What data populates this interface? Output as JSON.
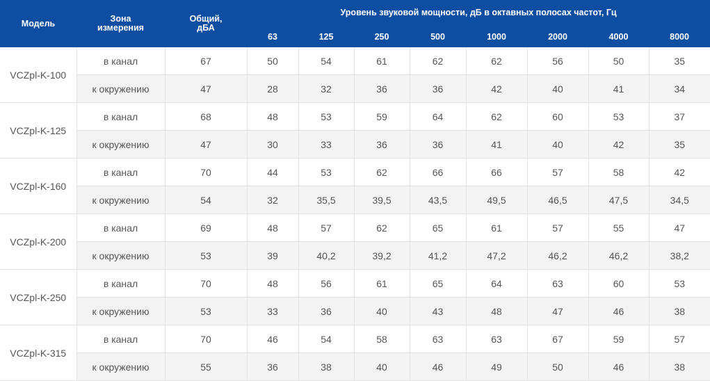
{
  "header": {
    "model": "Модель",
    "zone": "Зона\nизмерения",
    "total": "Общий,\nдБА",
    "group": "Уровень звуковой мощности, дБ в октавных полосах частот, Гц",
    "freqs": [
      "63",
      "125",
      "250",
      "500",
      "1000",
      "2000",
      "4000",
      "8000"
    ]
  },
  "models": [
    {
      "name": "VCZpl-K-100",
      "rows": [
        {
          "zone": "в канал",
          "total": "67",
          "v": [
            "50",
            "54",
            "61",
            "62",
            "62",
            "56",
            "50",
            "35"
          ]
        },
        {
          "zone": "к окружению",
          "total": "47",
          "v": [
            "28",
            "32",
            "36",
            "36",
            "42",
            "40",
            "41",
            "34"
          ]
        }
      ]
    },
    {
      "name": "VCZpl-K-125",
      "rows": [
        {
          "zone": "в канал",
          "total": "68",
          "v": [
            "48",
            "53",
            "59",
            "64",
            "62",
            "60",
            "53",
            "37"
          ]
        },
        {
          "zone": "к окружению",
          "total": "47",
          "v": [
            "30",
            "33",
            "36",
            "36",
            "41",
            "40",
            "42",
            "35"
          ]
        }
      ]
    },
    {
      "name": "VCZpl-K-160",
      "rows": [
        {
          "zone": "в канал",
          "total": "70",
          "v": [
            "44",
            "53",
            "62",
            "66",
            "66",
            "57",
            "58",
            "42"
          ]
        },
        {
          "zone": "к окружению",
          "total": "54",
          "v": [
            "32",
            "35,5",
            "39,5",
            "43,5",
            "49,5",
            "46,5",
            "47,5",
            "34,5"
          ]
        }
      ]
    },
    {
      "name": "VCZpl-K-200",
      "rows": [
        {
          "zone": "в канал",
          "total": "69",
          "v": [
            "48",
            "57",
            "62",
            "65",
            "61",
            "57",
            "55",
            "47"
          ]
        },
        {
          "zone": "к окружению",
          "total": "53",
          "v": [
            "39",
            "40,2",
            "39,2",
            "41,2",
            "47,2",
            "46,2",
            "46,2",
            "38,2"
          ]
        }
      ]
    },
    {
      "name": "VCZpl-K-250",
      "rows": [
        {
          "zone": "в канал",
          "total": "70",
          "v": [
            "48",
            "56",
            "61",
            "65",
            "64",
            "63",
            "60",
            "53"
          ]
        },
        {
          "zone": "к окружению",
          "total": "53",
          "v": [
            "33",
            "36",
            "40",
            "43",
            "48",
            "47",
            "46",
            "38"
          ]
        }
      ]
    },
    {
      "name": "VCZpl-K-315",
      "rows": [
        {
          "zone": "в канал",
          "total": "70",
          "v": [
            "46",
            "54",
            "58",
            "63",
            "63",
            "67",
            "59",
            "57"
          ]
        },
        {
          "zone": "к окружению",
          "total": "55",
          "v": [
            "36",
            "38",
            "40",
            "46",
            "49",
            "50",
            "46",
            "38"
          ]
        }
      ]
    }
  ]
}
